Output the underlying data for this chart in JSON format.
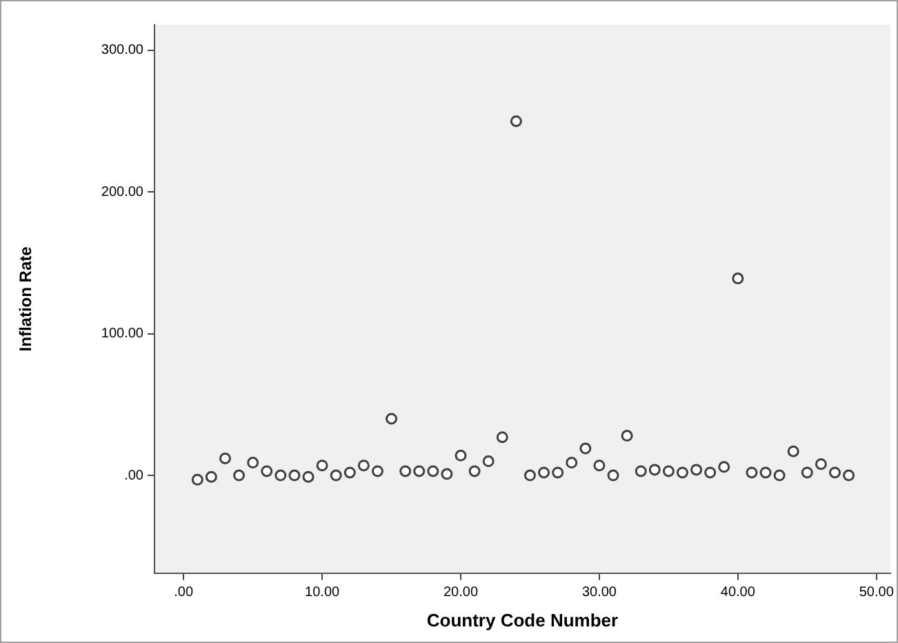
{
  "chart_data": {
    "type": "scatter",
    "xlabel": "Country Code Number",
    "ylabel": "Inflation Rate",
    "x": [
      1,
      2,
      3,
      4,
      5,
      6,
      7,
      8,
      9,
      10,
      11,
      12,
      13,
      14,
      15,
      16,
      17,
      18,
      19,
      20,
      21,
      22,
      23,
      24,
      25,
      26,
      27,
      28,
      29,
      30,
      31,
      32,
      33,
      34,
      35,
      36,
      37,
      38,
      39,
      40,
      41,
      42,
      43,
      44,
      45,
      46,
      47,
      48
    ],
    "series": [
      {
        "color": "#404040",
        "values": [
          -3,
          -1,
          12,
          0,
          9,
          3,
          0,
          0,
          -1,
          7,
          0,
          2,
          7,
          3,
          40,
          3,
          3,
          3,
          1,
          14,
          3,
          10,
          27,
          250,
          0,
          2,
          2,
          9,
          19,
          7,
          0,
          28,
          3,
          4,
          3,
          2,
          4,
          2,
          6,
          139,
          2,
          2,
          0,
          17,
          2,
          8,
          2,
          0
        ]
      }
    ],
    "xlim": [
      -2.1,
      51
    ],
    "ylim": [
      -69,
      318
    ],
    "xticks": [
      {
        "value": 0,
        "label": ".00"
      },
      {
        "value": 10,
        "label": "10.00"
      },
      {
        "value": 20,
        "label": "20.00"
      },
      {
        "value": 30,
        "label": "30.00"
      },
      {
        "value": 40,
        "label": "40.00"
      },
      {
        "value": 50,
        "label": "50.00"
      }
    ],
    "yticks": [
      {
        "value": 0,
        "label": ".00"
      },
      {
        "value": 100,
        "label": "100.00"
      },
      {
        "value": 200,
        "label": "200.00"
      },
      {
        "value": 300,
        "label": "300.00"
      }
    ],
    "grid": false,
    "legend": false,
    "marker": "circle"
  }
}
